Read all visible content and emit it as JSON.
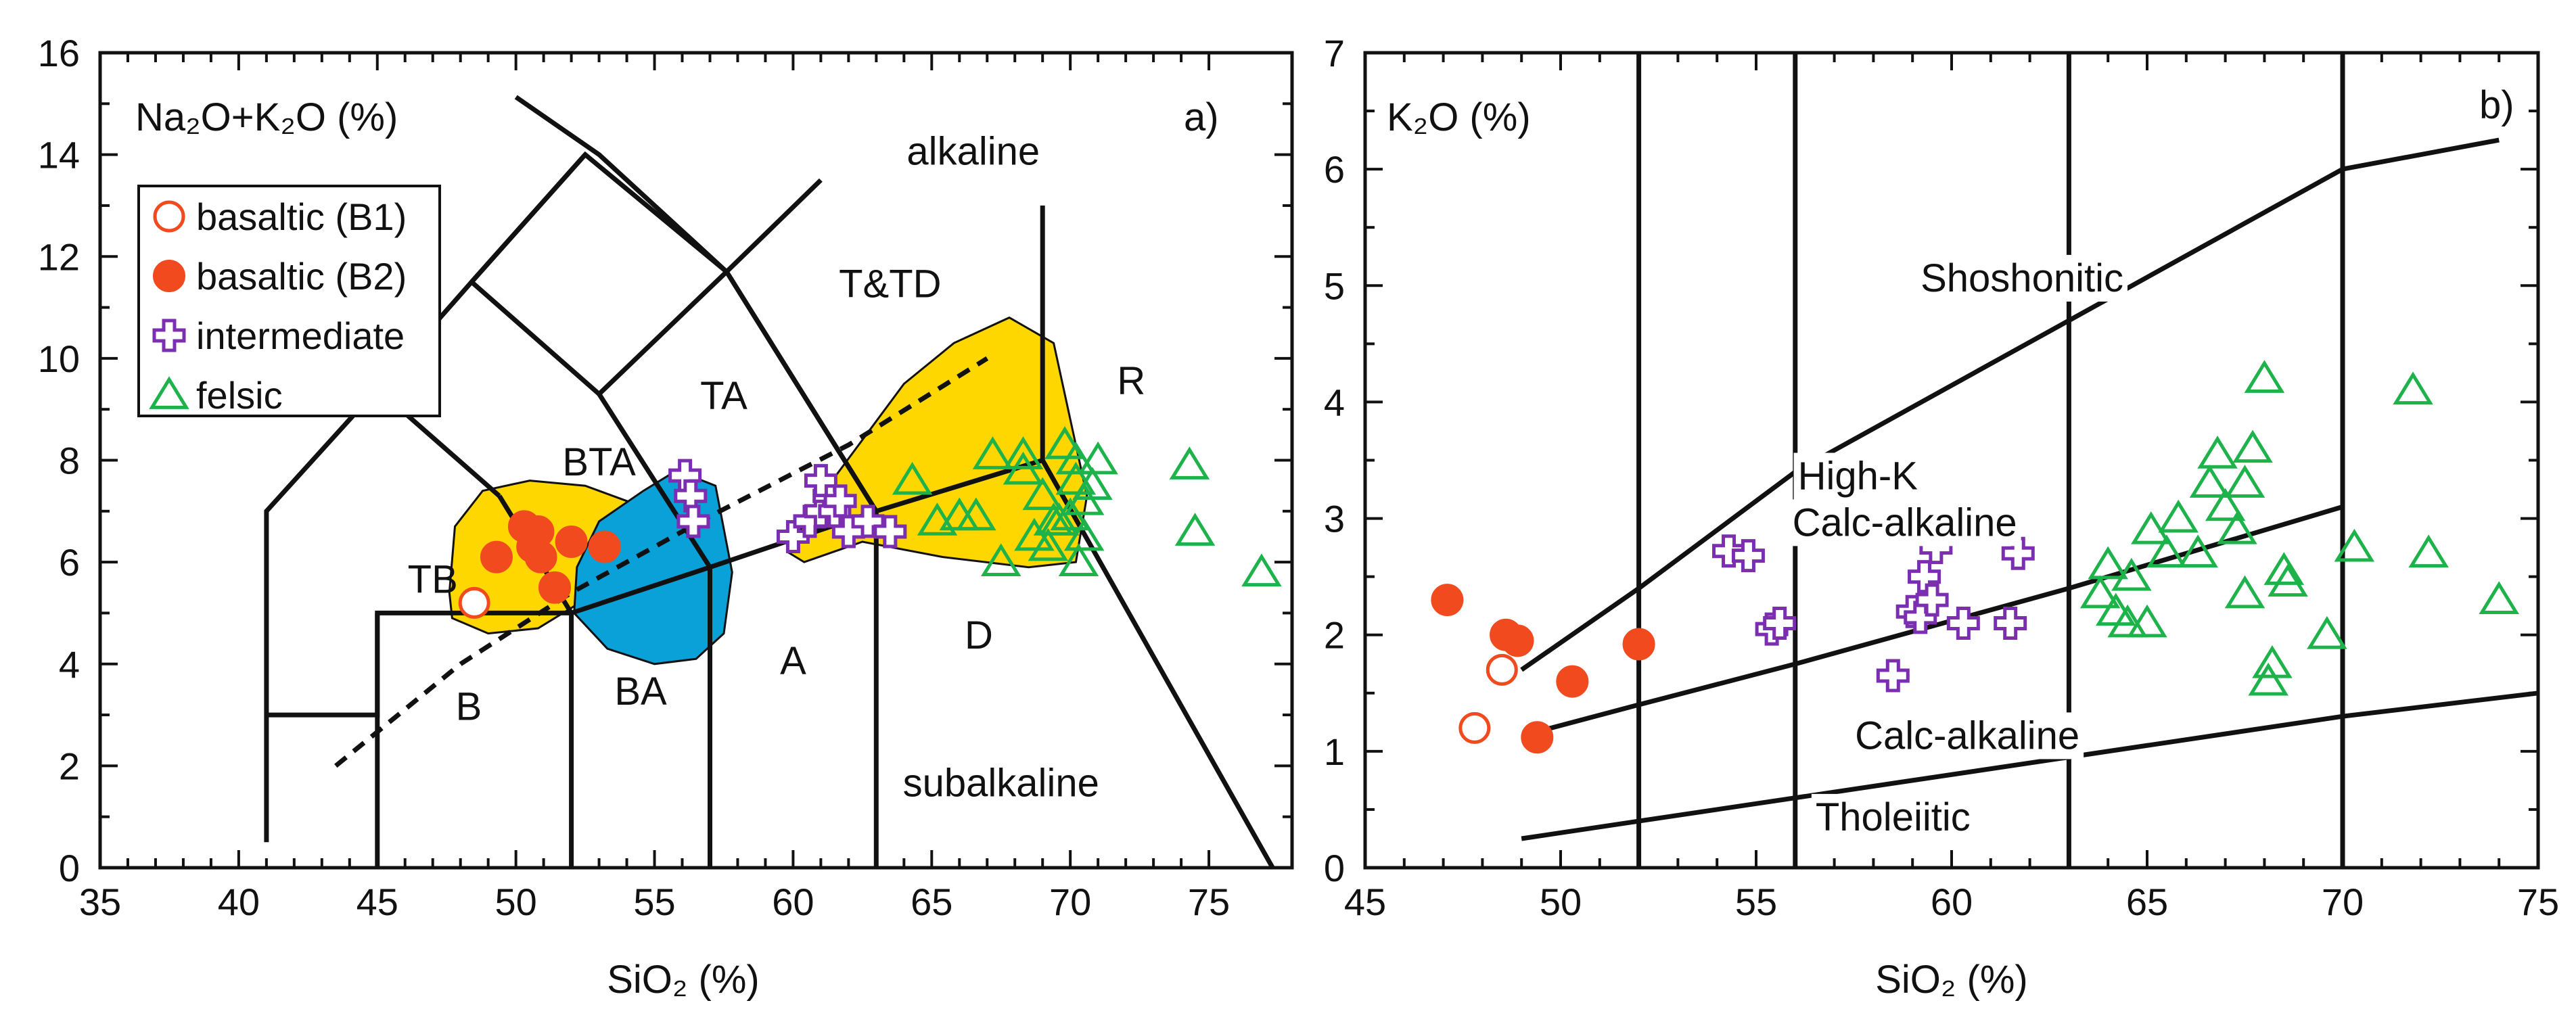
{
  "chart_data": [
    {
      "type": "scatter",
      "id": "panel_a",
      "title": "Na₂O+K₂O (%)",
      "panel_tag": "a)",
      "xlabel": "SiO₂ (%)",
      "ylabel": "Na₂O+K₂O (%)",
      "xlim": [
        35,
        78
      ],
      "ylim": [
        0,
        16
      ],
      "xticks": [
        35,
        40,
        45,
        50,
        55,
        60,
        65,
        70,
        75
      ],
      "yticks": [
        0,
        2,
        4,
        6,
        8,
        10,
        12,
        14,
        16
      ],
      "grid": false,
      "legend_position": "top-left",
      "legend": [
        {
          "key": "b1",
          "label": "basaltic (B1)",
          "marker": "open-circle",
          "color": "#f04a1e"
        },
        {
          "key": "b2",
          "label": "basaltic (B2)",
          "marker": "filled-circle",
          "color": "#f04a1e"
        },
        {
          "key": "int",
          "label": "intermediate",
          "marker": "open-cross",
          "color": "#7b2fb0"
        },
        {
          "key": "fel",
          "label": "felsic",
          "marker": "open-triangle",
          "color": "#1db34a"
        }
      ],
      "field_labels": [
        {
          "text": "B",
          "x": 48.3,
          "y": 2.9
        },
        {
          "text": "BA",
          "x": 54.5,
          "y": 3.2
        },
        {
          "text": "A",
          "x": 60,
          "y": 3.8
        },
        {
          "text": "D",
          "x": 66.7,
          "y": 4.3
        },
        {
          "text": "TB",
          "x": 47,
          "y": 5.4
        },
        {
          "text": "BTA",
          "x": 53,
          "y": 7.7
        },
        {
          "text": "TA",
          "x": 57.5,
          "y": 9.0
        },
        {
          "text": "T&TD",
          "x": 63.5,
          "y": 11.2
        },
        {
          "text": "R",
          "x": 72.2,
          "y": 9.3
        },
        {
          "text": "alkaline",
          "x": 66.5,
          "y": 13.8
        },
        {
          "text": "subalkaline",
          "x": 67.5,
          "y": 1.4
        }
      ],
      "tas_boundaries": [
        [
          [
            41,
            0.5
          ],
          [
            41,
            7
          ],
          [
            45,
            9.4
          ],
          [
            48.4,
            11.5
          ],
          [
            52.5,
            14
          ],
          [
            57.6,
            11.7
          ],
          [
            63,
            7
          ]
        ],
        [
          [
            41,
            3
          ],
          [
            45,
            3
          ],
          [
            45,
            5
          ],
          [
            52,
            5
          ],
          [
            57,
            5.9
          ],
          [
            63,
            7
          ],
          [
            69,
            8
          ],
          [
            77.3,
            0
          ]
        ],
        [
          [
            45,
            0
          ],
          [
            45,
            5
          ]
        ],
        [
          [
            52,
            0
          ],
          [
            52,
            5
          ]
        ],
        [
          [
            57,
            0
          ],
          [
            57,
            5.9
          ]
        ],
        [
          [
            63,
            0
          ],
          [
            63,
            7
          ]
        ],
        [
          [
            49.4,
            7.3
          ],
          [
            52,
            5
          ]
        ],
        [
          [
            53,
            9.3
          ],
          [
            57,
            5.9
          ]
        ],
        [
          [
            57.6,
            11.7
          ],
          [
            63,
            7
          ]
        ],
        [
          [
            45,
            9.4
          ],
          [
            49.4,
            7.3
          ]
        ],
        [
          [
            48.4,
            11.5
          ],
          [
            53,
            9.3
          ],
          [
            57.6,
            11.7
          ]
        ],
        [
          [
            52.5,
            14
          ],
          [
            48.4,
            11.5
          ]
        ],
        [
          [
            57.6,
            11.7
          ],
          [
            61,
            13.5
          ]
        ],
        [
          [
            50,
            15.13
          ],
          [
            53,
            14
          ],
          [
            57.6,
            11.7
          ]
        ],
        [
          [
            69,
            8
          ],
          [
            69,
            13
          ]
        ]
      ],
      "alkaline_divider": [
        [
          43.5,
          2.0
        ],
        [
          48,
          4.0
        ],
        [
          52,
          5.4
        ],
        [
          57,
          6.9
        ],
        [
          62,
          8.3
        ],
        [
          67,
          10.0
        ]
      ],
      "fields": [
        {
          "name": "basaltic-field",
          "color": "#ffd700",
          "points": [
            [
              47.6,
              5.4
            ],
            [
              47.8,
              6.7
            ],
            [
              48.8,
              7.4
            ],
            [
              50.5,
              7.6
            ],
            [
              52.5,
              7.5
            ],
            [
              54.0,
              7.2
            ],
            [
              53.8,
              6.2
            ],
            [
              52.6,
              5.3
            ],
            [
              50.8,
              4.7
            ],
            [
              49,
              4.6
            ],
            [
              47.7,
              4.9
            ]
          ]
        },
        {
          "name": "intermediate-field",
          "color": "#0aa0d8",
          "points": [
            [
              52.2,
              5.9
            ],
            [
              53.0,
              6.8
            ],
            [
              54.6,
              7.4
            ],
            [
              55.8,
              7.8
            ],
            [
              57.2,
              7.5
            ],
            [
              57.8,
              5.8
            ],
            [
              57.5,
              4.6
            ],
            [
              56.5,
              4.1
            ],
            [
              55.0,
              4.0
            ],
            [
              53.3,
              4.3
            ],
            [
              52.1,
              5.0
            ]
          ]
        },
        {
          "name": "felsic-field",
          "color": "#ffd700",
          "points": [
            [
              59.8,
              6.2
            ],
            [
              61.0,
              7.3
            ],
            [
              62.5,
              8.4
            ],
            [
              64,
              9.5
            ],
            [
              65.8,
              10.3
            ],
            [
              67.8,
              10.8
            ],
            [
              69.4,
              10.3
            ],
            [
              70.0,
              8.8
            ],
            [
              70.6,
              7.3
            ],
            [
              70.2,
              6.0
            ],
            [
              68.5,
              5.9
            ],
            [
              65.4,
              6.1
            ],
            [
              62.5,
              6.4
            ],
            [
              60.4,
              6.0
            ]
          ]
        }
      ],
      "series": [
        {
          "name": "basaltic (B1)",
          "key": "b1",
          "points": [
            [
              48.5,
              5.2
            ]
          ]
        },
        {
          "name": "basaltic (B2)",
          "key": "b2",
          "points": [
            [
              49.3,
              6.1
            ],
            [
              50.3,
              6.7
            ],
            [
              50.6,
              6.3
            ],
            [
              50.9,
              6.1
            ],
            [
              51.4,
              5.5
            ],
            [
              52,
              6.4
            ],
            [
              53.2,
              6.3
            ],
            [
              50.8,
              6.6
            ]
          ]
        },
        {
          "name": "intermediate",
          "key": "int",
          "points": [
            [
              56.1,
              7.7
            ],
            [
              56.3,
              7.3
            ],
            [
              56.4,
              6.8
            ],
            [
              60,
              6.5
            ],
            [
              60.6,
              6.8
            ],
            [
              61,
              7
            ],
            [
              61.3,
              7.3
            ],
            [
              61.5,
              7.0
            ],
            [
              61,
              7.6
            ],
            [
              62,
              6.6
            ],
            [
              62.7,
              6.8
            ],
            [
              63.5,
              6.6
            ],
            [
              61.7,
              7.2
            ]
          ]
        },
        {
          "name": "felsic",
          "key": "fel",
          "points": [
            [
              64.3,
              7.6
            ],
            [
              65.2,
              6.8
            ],
            [
              66,
              6.9
            ],
            [
              66.6,
              6.9
            ],
            [
              67.2,
              8.1
            ],
            [
              67.5,
              6
            ],
            [
              68.3,
              7.8
            ],
            [
              68.3,
              8.1
            ],
            [
              68.7,
              6.5
            ],
            [
              69,
              7.3
            ],
            [
              69.2,
              6.3
            ],
            [
              69.6,
              6.8
            ],
            [
              69.8,
              8.3
            ],
            [
              70,
              6.9
            ],
            [
              70.2,
              7.6
            ],
            [
              70.3,
              6
            ],
            [
              70.5,
              7.2
            ],
            [
              70.8,
              7.5
            ],
            [
              70.5,
              6.5
            ],
            [
              71,
              8
            ],
            [
              74.3,
              7.9
            ],
            [
              74.5,
              6.6
            ],
            [
              76.9,
              5.8
            ],
            [
              70.2,
              8.0
            ],
            [
              69.4,
              6.8
            ]
          ]
        }
      ]
    },
    {
      "type": "scatter",
      "id": "panel_b",
      "title": "K₂O (%)",
      "panel_tag": "b)",
      "xlabel": "SiO₂ (%)",
      "ylabel": "K₂O (%)",
      "xlim": [
        45,
        75
      ],
      "ylim": [
        0,
        7
      ],
      "xticks": [
        45,
        50,
        55,
        60,
        65,
        70,
        75
      ],
      "yticks": [
        0,
        1,
        2,
        3,
        4,
        5,
        6,
        7
      ],
      "grid": false,
      "vertical_lines": [
        52,
        56,
        63,
        70
      ],
      "series_boundaries": [
        [
          [
            49,
            1.7
          ],
          [
            52,
            2.4
          ],
          [
            56,
            3.4
          ],
          [
            63,
            4.7
          ],
          [
            70,
            6.0
          ],
          [
            74,
            6.25
          ]
        ],
        [
          [
            49.2,
            1.15
          ],
          [
            52,
            1.4
          ],
          [
            56,
            1.75
          ],
          [
            63,
            2.4
          ],
          [
            70,
            3.1
          ]
        ],
        [
          [
            49,
            0.25
          ],
          [
            52,
            0.4
          ],
          [
            56,
            0.6
          ],
          [
            63,
            0.95
          ],
          [
            70,
            1.3
          ],
          [
            75,
            1.5
          ]
        ]
      ],
      "field_labels": [
        {
          "text": "Shoshonitic",
          "x": 61.8,
          "y": 4.95
        },
        {
          "text": "High-K",
          "x": 57.6,
          "y": 3.25
        },
        {
          "text": "Calc-alkaline",
          "x": 58.8,
          "y": 2.85
        },
        {
          "text": "Calc-alkaline",
          "x": 60.4,
          "y": 1.02
        },
        {
          "text": "Tholeiitic",
          "x": 58.5,
          "y": 0.32
        }
      ],
      "series": [
        {
          "name": "basaltic (B1)",
          "key": "b1",
          "points": [
            [
              47.8,
              1.2
            ],
            [
              48.5,
              1.7
            ]
          ]
        },
        {
          "name": "basaltic (B2)",
          "key": "b2",
          "points": [
            [
              47.1,
              2.3
            ],
            [
              48.6,
              2.0
            ],
            [
              48.9,
              1.95
            ],
            [
              49.4,
              1.12
            ],
            [
              50.3,
              1.6
            ],
            [
              52,
              1.92
            ]
          ]
        },
        {
          "name": "intermediate",
          "key": "int",
          "points": [
            [
              54.3,
              2.72
            ],
            [
              54.8,
              2.68
            ],
            [
              55.4,
              2.05
            ],
            [
              55.6,
              2.1
            ],
            [
              58.5,
              1.65
            ],
            [
              59,
              2.2
            ],
            [
              59.2,
              2.15
            ],
            [
              59.3,
              2.5
            ],
            [
              59.5,
              2.3
            ],
            [
              59.6,
              2.75
            ],
            [
              60.3,
              2.1
            ],
            [
              61.5,
              2.1
            ],
            [
              61.7,
              2.7
            ]
          ]
        },
        {
          "name": "felsic",
          "key": "fel",
          "points": [
            [
              63.8,
              2.35
            ],
            [
              64,
              2.6
            ],
            [
              64.2,
              2.2
            ],
            [
              64.5,
              2.1
            ],
            [
              64.6,
              2.5
            ],
            [
              65,
              2.1
            ],
            [
              65.1,
              2.9
            ],
            [
              65.5,
              2.7
            ],
            [
              65.8,
              3.0
            ],
            [
              66.3,
              2.7
            ],
            [
              66.6,
              3.3
            ],
            [
              66.8,
              3.55
            ],
            [
              67,
              3.1
            ],
            [
              67.3,
              2.9
            ],
            [
              67.5,
              3.3
            ],
            [
              67.7,
              3.6
            ],
            [
              67.5,
              2.35
            ],
            [
              68,
              4.2
            ],
            [
              68.2,
              1.75
            ],
            [
              68.1,
              1.6
            ],
            [
              68.5,
              2.55
            ],
            [
              68.6,
              2.45
            ],
            [
              69.6,
              2.0
            ],
            [
              70.3,
              2.75
            ],
            [
              71.8,
              4.1
            ],
            [
              72.2,
              2.7
            ],
            [
              74,
              2.3
            ]
          ]
        }
      ]
    }
  ]
}
